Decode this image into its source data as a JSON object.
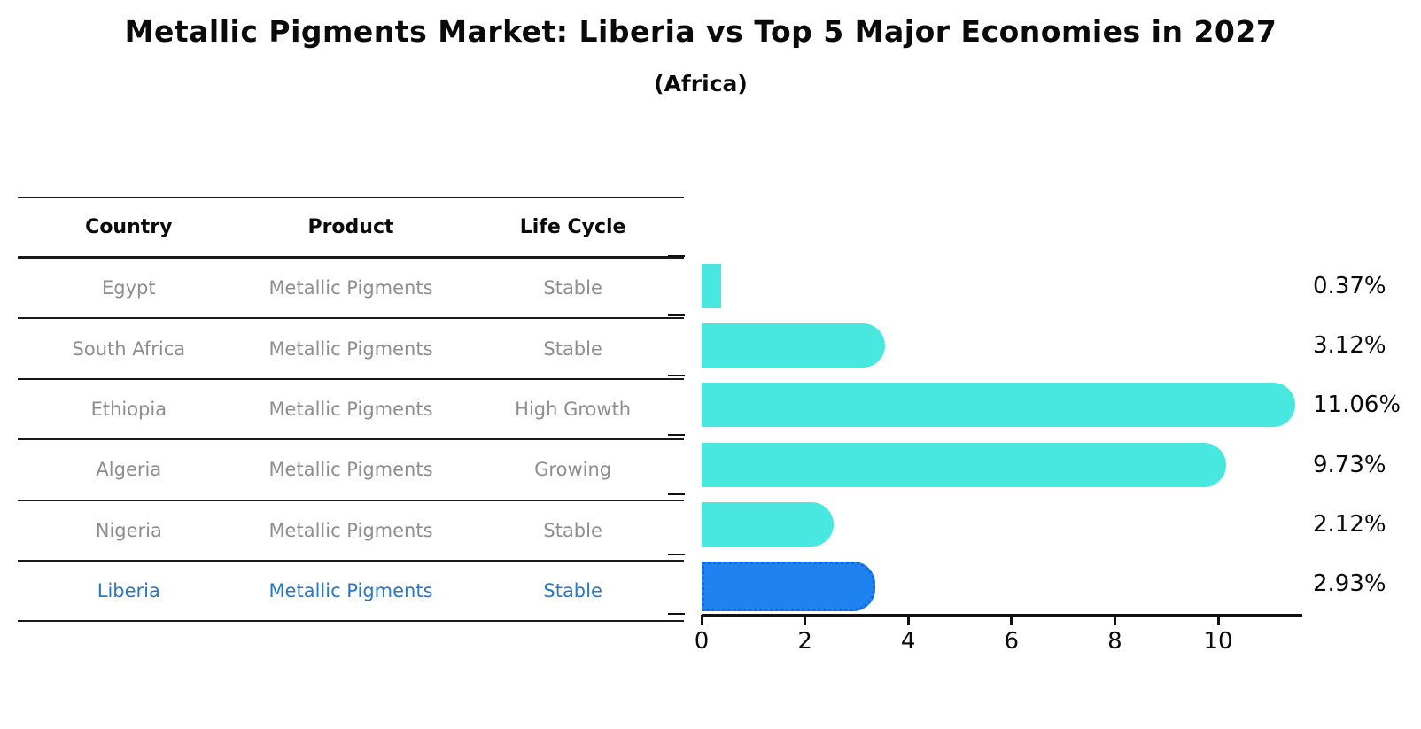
{
  "chart_data": {
    "type": "bar",
    "orientation": "horizontal",
    "title": "Metallic Pigments Market: Liberia vs Top 5 Major Economies in 2027",
    "subtitle": "(Africa)",
    "categories": [
      "Egypt",
      "South Africa",
      "Ethiopia",
      "Algeria",
      "Nigeria",
      "Liberia"
    ],
    "values": [
      0.37,
      3.12,
      11.06,
      9.73,
      2.12,
      2.93
    ],
    "value_labels": [
      "0.37%",
      "3.12%",
      "11.06%",
      "9.73%",
      "2.12%",
      "2.93%"
    ],
    "highlight_category": "Liberia",
    "highlight_index": 5,
    "xlim": [
      0,
      11.6
    ],
    "x_tick_values": [
      0,
      2,
      4,
      6,
      8,
      10
    ],
    "x_tick_labels": [
      "0",
      "2",
      "4",
      "6",
      "8",
      "10"
    ],
    "grid": false,
    "legend": null,
    "colors": {
      "bar": "#48E8E0",
      "highlight_bar": "#1E82F0",
      "highlight_bar_border": "#1566D9",
      "value_text": "#0a0a0a",
      "axis": "#111111"
    }
  },
  "table": {
    "headers": [
      "Country",
      "Product",
      "Life Cycle"
    ],
    "rows": [
      {
        "country": "Egypt",
        "product": "Metallic Pigments",
        "life_cycle": "Stable",
        "highlighted": false
      },
      {
        "country": "South Africa",
        "product": "Metallic Pigments",
        "life_cycle": "Stable",
        "highlighted": false
      },
      {
        "country": "Ethiopia",
        "product": "Metallic Pigments",
        "life_cycle": "High Growth",
        "highlighted": false
      },
      {
        "country": "Algeria",
        "product": "Metallic Pigments",
        "life_cycle": "Growing",
        "highlighted": false
      },
      {
        "country": "Nigeria",
        "product": "Metallic Pigments",
        "life_cycle": "Stable",
        "highlighted": false
      },
      {
        "country": "Liberia",
        "product": "Metallic Pigments",
        "life_cycle": "Stable",
        "highlighted": true
      }
    ],
    "text_color": "#8e8e8e",
    "highlight_text_color": "#2878C8"
  }
}
